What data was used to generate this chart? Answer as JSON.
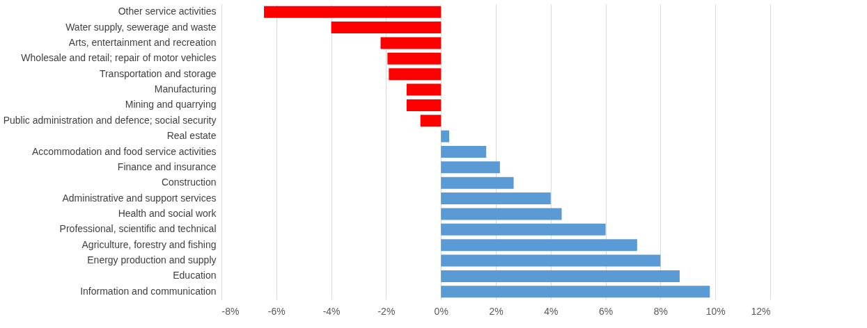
{
  "chart_data": {
    "type": "bar",
    "orientation": "horizontal",
    "categories": [
      "Other service activities",
      "Water supply, sewerage and waste",
      "Arts, entertainment and recreation",
      "Wholesale and retail; repair of motor vehicles",
      "Transportation and storage",
      "Manufacturing",
      "Mining and quarrying",
      "Public administration and defence; social security",
      "Real estate",
      "Accommodation and food service activities",
      "Finance and insurance",
      "Construction",
      "Administrative and support services",
      "Health and social work",
      "Professional, scientific and technical",
      "Agriculture, forestry and fishing",
      "Energy production and supply",
      "Education",
      "Information and communication"
    ],
    "values": [
      -6.45,
      -4.0,
      -2.2,
      -1.95,
      -1.9,
      -1.25,
      -1.25,
      -0.75,
      0.3,
      1.65,
      2.15,
      2.65,
      4.0,
      4.4,
      6.0,
      7.15,
      8.0,
      8.7,
      9.8
    ],
    "colors": [
      "#ff0000",
      "#ff0000",
      "#ff0000",
      "#ff0000",
      "#ff0000",
      "#ff0000",
      "#ff0000",
      "#ff0000",
      "#5b9bd5",
      "#5b9bd5",
      "#5b9bd5",
      "#5b9bd5",
      "#5b9bd5",
      "#5b9bd5",
      "#5b9bd5",
      "#5b9bd5",
      "#5b9bd5",
      "#5b9bd5",
      "#5b9bd5"
    ],
    "xlim": [
      -8,
      12
    ],
    "xticks": [
      {
        "value": -8,
        "label": "-8%"
      },
      {
        "value": -6,
        "label": "-6%"
      },
      {
        "value": -4,
        "label": "-4%"
      },
      {
        "value": -2,
        "label": "-2%"
      },
      {
        "value": 0,
        "label": "0%"
      },
      {
        "value": 2,
        "label": "2%"
      },
      {
        "value": 4,
        "label": "4%"
      },
      {
        "value": 6,
        "label": "6%"
      },
      {
        "value": 8,
        "label": "8%"
      },
      {
        "value": 10,
        "label": "10%"
      },
      {
        "value": 12,
        "label": "12%"
      }
    ],
    "grid": "x"
  }
}
